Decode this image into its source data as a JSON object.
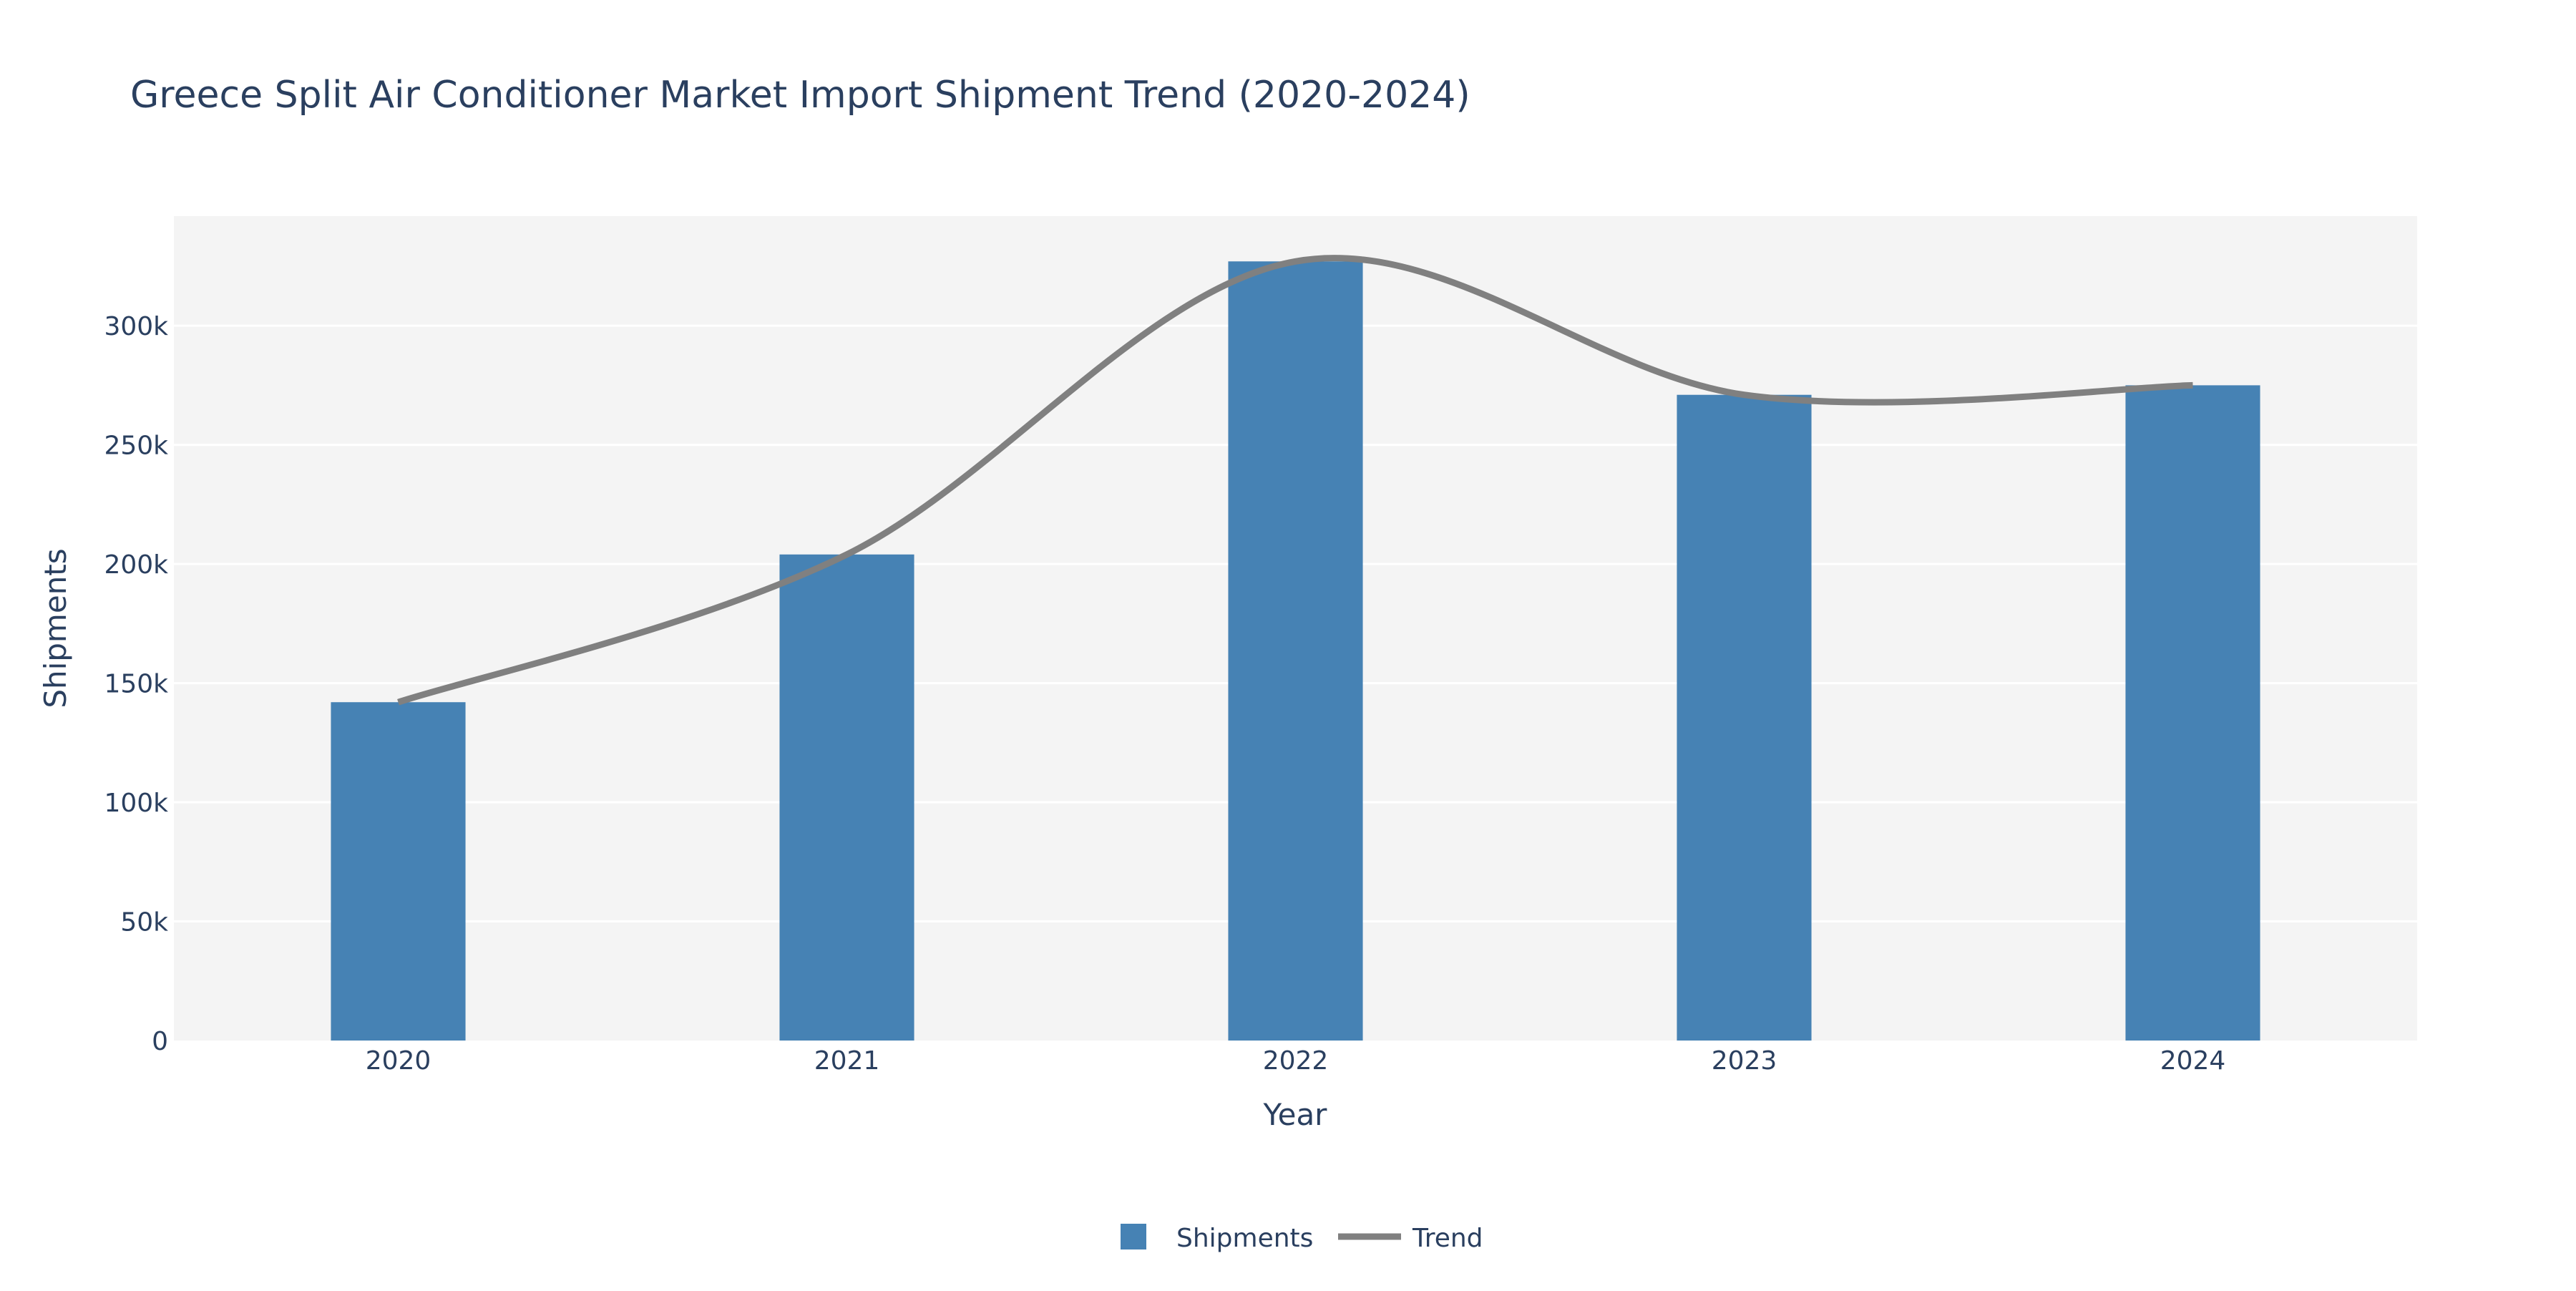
{
  "chart_data": {
    "type": "bar",
    "title": "Greece Split Air Conditioner Market Import Shipment Trend (2020-2024)",
    "xlabel": "Year",
    "ylabel": "Shipments",
    "categories": [
      "2020",
      "2021",
      "2022",
      "2023",
      "2024"
    ],
    "ylim": [
      0,
      346000
    ],
    "yticks": [
      0,
      50000,
      100000,
      150000,
      200000,
      250000,
      300000
    ],
    "ytick_labels": [
      "0",
      "50k",
      "100k",
      "150k",
      "200k",
      "250k",
      "300k"
    ],
    "grid": true,
    "legend_position": "bottom-center",
    "series": [
      {
        "name": "Shipments",
        "type": "bar",
        "color": "#4682b4",
        "values": [
          142000,
          204000,
          327000,
          271000,
          275000
        ]
      },
      {
        "name": "Trend",
        "type": "line",
        "color": "#808080",
        "values": [
          142000,
          204000,
          327000,
          271000,
          275000
        ]
      }
    ],
    "colors": {
      "plot_background": "#f4f4f4",
      "text": "#2a3f5f",
      "gridline": "#ffffff"
    }
  }
}
